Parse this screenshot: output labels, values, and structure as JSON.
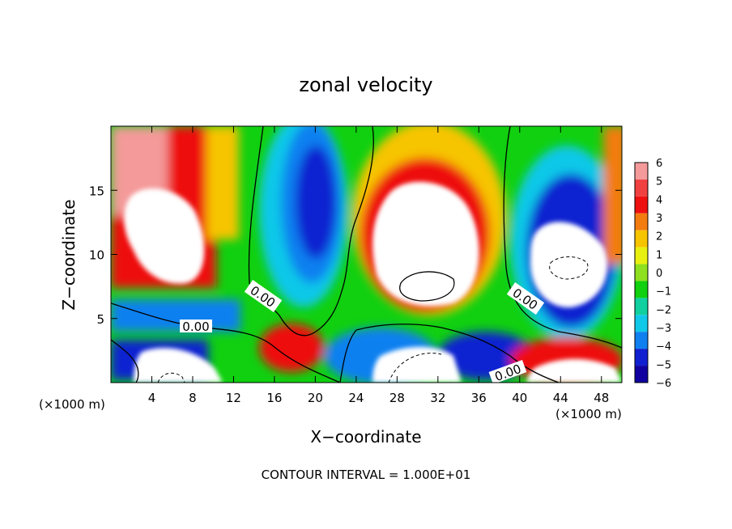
{
  "chart_data": {
    "type": "heatmap",
    "title": "zonal velocity",
    "xlabel": "X−coordinate",
    "ylabel": "Z−coordinate",
    "x_units_left": "(×1000 m)",
    "x_units_right": "(×1000 m)",
    "xlim": [
      0,
      50
    ],
    "ylim": [
      0,
      20
    ],
    "x_ticks": [
      4,
      8,
      12,
      16,
      20,
      24,
      28,
      32,
      36,
      40,
      44,
      48
    ],
    "x_tick_labels": [
      "4",
      "8",
      "12",
      "16",
      "20",
      "24",
      "28",
      "32",
      "36",
      "40",
      "44",
      "48"
    ],
    "y_ticks": [
      5,
      10,
      15
    ],
    "y_tick_labels": [
      "5",
      "10",
      "15"
    ],
    "footer": "CONTOUR INTERVAL = 1.000E+01",
    "contour_labels": [
      "0.00",
      "0.00",
      "0.00",
      "0.00"
    ],
    "colorbar": {
      "levels": [
        6,
        5,
        4,
        3,
        2,
        1,
        0,
        -1,
        -2,
        -3,
        -4,
        -5,
        -6
      ],
      "labels": [
        "6",
        "5",
        "4",
        "3",
        "2",
        "1",
        "0",
        "−1",
        "−2",
        "−3",
        "−4",
        "−5",
        "−6"
      ],
      "colors": [
        "#f49a9a",
        "#f04040",
        "#ee1010",
        "#f37c10",
        "#f7c400",
        "#e8f010",
        "#8ee020",
        "#10d010",
        "#10d0a0",
        "#10c8e8",
        "#1080f0",
        "#1020d0",
        "#1000a0",
        "#7a00b0"
      ]
    },
    "features": [
      {
        "kind": "max",
        "x": 4.5,
        "z": 16.5,
        "value": 6
      },
      {
        "kind": "max",
        "x": 8.5,
        "z": 12,
        "value": 6
      },
      {
        "kind": "min",
        "x": 18,
        "z": 14,
        "value": -5
      },
      {
        "kind": "max",
        "x": 31,
        "z": 12,
        "value": 6
      },
      {
        "kind": "min",
        "x": 42,
        "z": 13,
        "value": -6
      },
      {
        "kind": "max",
        "x": 33,
        "z": 1.5,
        "value": 6
      },
      {
        "kind": "min",
        "x": 45,
        "z": 10,
        "value": -6
      }
    ]
  }
}
